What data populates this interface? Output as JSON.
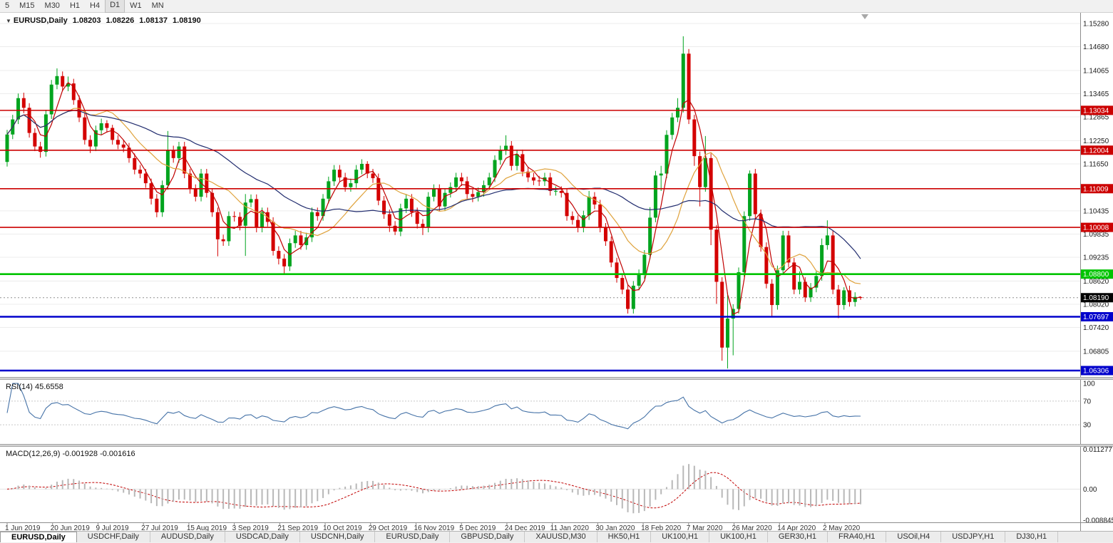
{
  "toolbar": {
    "timeframes": [
      "5",
      "M15",
      "M30",
      "H1",
      "H4",
      "D1",
      "W1",
      "MN"
    ],
    "active": "D1"
  },
  "chart": {
    "title": {
      "symbol": "EURUSD,Daily",
      "open": "1.08203",
      "high": "1.08226",
      "low": "1.08137",
      "close": "1.08190"
    }
  },
  "chart_data": {
    "type": "candlestick",
    "symbol": "EURUSD",
    "timeframe": "Daily",
    "title": "EURUSD,Daily 1.08203 1.08226 1.08137 1.08190",
    "ylim": [
      1.0614,
      1.15556
    ],
    "price_axis_ticks": [
      "1.15280",
      "1.14680",
      "1.14065",
      "1.13465",
      "1.12865",
      "1.12250",
      "1.11650",
      "1.10435",
      "1.09835",
      "1.09235",
      "1.08620",
      "1.08020",
      "1.07420",
      "1.06805"
    ],
    "x_labels": [
      "1 Jun 2019",
      "20 Jun 2019",
      "9 Jul 2019",
      "27 Jul 2019",
      "15 Aug 2019",
      "3 Sep 2019",
      "21 Sep 2019",
      "10 Oct 2019",
      "29 Oct 2019",
      "16 Nov 2019",
      "5 Dec 2019",
      "24 Dec 2019",
      "11 Jan 2020",
      "30 Jan 2020",
      "18 Feb 2020",
      "7 Mar 2020",
      "26 Mar 2020",
      "14 Apr 2020",
      "2 May 2020"
    ],
    "candle_colors": {
      "up": "#00a41e",
      "down": "#d40000"
    },
    "candles_ohlc": [
      [
        1.117,
        1.1253,
        1.1158,
        1.1241
      ],
      [
        1.1241,
        1.1292,
        1.1229,
        1.128
      ],
      [
        1.128,
        1.1347,
        1.1268,
        1.1335
      ],
      [
        1.1335,
        1.1349,
        1.1296,
        1.131
      ],
      [
        1.131,
        1.1322,
        1.1233,
        1.1245
      ],
      [
        1.1245,
        1.1257,
        1.1198,
        1.121
      ],
      [
        1.121,
        1.1222,
        1.1181,
        1.1196
      ],
      [
        1.1196,
        1.1305,
        1.1184,
        1.1293
      ],
      [
        1.1293,
        1.1382,
        1.1281,
        1.137
      ],
      [
        1.137,
        1.1412,
        1.1358,
        1.1392
      ],
      [
        1.1392,
        1.1404,
        1.1353,
        1.1365
      ],
      [
        1.1365,
        1.1391,
        1.1353,
        1.1373
      ],
      [
        1.1373,
        1.1385,
        1.1318,
        1.133
      ],
      [
        1.133,
        1.1342,
        1.1273,
        1.1285
      ],
      [
        1.1285,
        1.1297,
        1.1215,
        1.1227
      ],
      [
        1.1227,
        1.1239,
        1.1193,
        1.121
      ],
      [
        1.121,
        1.1264,
        1.1198,
        1.1252
      ],
      [
        1.1252,
        1.1282,
        1.124,
        1.127
      ],
      [
        1.127,
        1.1278,
        1.1246,
        1.1258
      ],
      [
        1.1258,
        1.1266,
        1.1215,
        1.1227
      ],
      [
        1.1227,
        1.1239,
        1.1203,
        1.1215
      ],
      [
        1.1215,
        1.1227,
        1.1195,
        1.1207
      ],
      [
        1.1207,
        1.1219,
        1.1168,
        1.118
      ],
      [
        1.118,
        1.1192,
        1.1138,
        1.115
      ],
      [
        1.115,
        1.1162,
        1.1128,
        1.114
      ],
      [
        1.114,
        1.1152,
        1.1103,
        1.1115
      ],
      [
        1.1115,
        1.1127,
        1.106,
        1.1075
      ],
      [
        1.1075,
        1.1087,
        1.1027,
        1.104
      ],
      [
        1.104,
        1.1122,
        1.1028,
        1.111
      ],
      [
        1.111,
        1.125,
        1.1098,
        1.12
      ],
      [
        1.12,
        1.1212,
        1.1168,
        1.118
      ],
      [
        1.118,
        1.1222,
        1.1168,
        1.121
      ],
      [
        1.121,
        1.1222,
        1.1128,
        1.114
      ],
      [
        1.114,
        1.1152,
        1.1088,
        1.11
      ],
      [
        1.11,
        1.1112,
        1.1068,
        1.108
      ],
      [
        1.108,
        1.1152,
        1.1068,
        1.114
      ],
      [
        1.114,
        1.1152,
        1.1078,
        1.109
      ],
      [
        1.109,
        1.1102,
        1.1028,
        1.104
      ],
      [
        1.104,
        1.1052,
        1.0926,
        1.097
      ],
      [
        1.097,
        1.0982,
        1.0953,
        1.0965
      ],
      [
        1.0965,
        1.1042,
        1.0953,
        1.103
      ],
      [
        1.103,
        1.1042,
        1.1016,
        1.1028
      ],
      [
        1.1028,
        1.104,
        1.0993,
        1.1005
      ],
      [
        1.1005,
        1.1087,
        1.0927,
        1.1065
      ],
      [
        1.1065,
        1.1086,
        1.1053,
        1.1074
      ],
      [
        1.1074,
        1.1086,
        1.0988,
        1.1
      ],
      [
        1.1,
        1.1052,
        1.0988,
        1.104
      ],
      [
        1.104,
        1.1052,
        1.1003,
        1.1015
      ],
      [
        1.1015,
        1.1027,
        1.0928,
        1.094
      ],
      [
        1.094,
        1.0952,
        1.0905,
        1.092
      ],
      [
        1.092,
        1.0932,
        1.0879,
        1.09
      ],
      [
        1.09,
        1.0972,
        1.0888,
        1.096
      ],
      [
        1.096,
        1.0992,
        1.0948,
        1.098
      ],
      [
        1.098,
        1.0992,
        1.0943,
        1.0955
      ],
      [
        1.0955,
        1.0987,
        1.0943,
        1.0975
      ],
      [
        1.0975,
        1.1052,
        1.0963,
        1.104
      ],
      [
        1.104,
        1.1052,
        1.1018,
        1.103
      ],
      [
        1.103,
        1.1087,
        1.1018,
        1.1075
      ],
      [
        1.1075,
        1.1132,
        1.1063,
        1.112
      ],
      [
        1.112,
        1.1162,
        1.1108,
        1.115
      ],
      [
        1.115,
        1.1162,
        1.1118,
        1.113
      ],
      [
        1.113,
        1.1142,
        1.1093,
        1.1105
      ],
      [
        1.1105,
        1.1127,
        1.1093,
        1.1115
      ],
      [
        1.1115,
        1.1162,
        1.1103,
        1.115
      ],
      [
        1.115,
        1.1177,
        1.1138,
        1.1165
      ],
      [
        1.1165,
        1.1172,
        1.1128,
        1.114
      ],
      [
        1.114,
        1.1152,
        1.1116,
        1.1128
      ],
      [
        1.1128,
        1.114,
        1.1058,
        1.107
      ],
      [
        1.107,
        1.1082,
        1.1023,
        1.1035
      ],
      [
        1.1035,
        1.1047,
        1.0989,
        1.1005
      ],
      [
        1.1005,
        1.1017,
        1.0981,
        1.099
      ],
      [
        1.099,
        1.1062,
        1.0978,
        1.105
      ],
      [
        1.105,
        1.1087,
        1.1038,
        1.1075
      ],
      [
        1.1075,
        1.1087,
        1.1028,
        1.104
      ],
      [
        1.104,
        1.1052,
        1.0998,
        1.101
      ],
      [
        1.101,
        1.1022,
        1.0981,
        1.1
      ],
      [
        1.1,
        1.1092,
        1.0988,
        1.108
      ],
      [
        1.108,
        1.1112,
        1.1068,
        1.11
      ],
      [
        1.11,
        1.1112,
        1.1043,
        1.1055
      ],
      [
        1.1055,
        1.1102,
        1.1043,
        1.109
      ],
      [
        1.109,
        1.1117,
        1.1078,
        1.1105
      ],
      [
        1.1105,
        1.1142,
        1.1093,
        1.113
      ],
      [
        1.113,
        1.1142,
        1.1108,
        1.112
      ],
      [
        1.112,
        1.1132,
        1.1075,
        1.1087
      ],
      [
        1.1087,
        1.1099,
        1.1066,
        1.108
      ],
      [
        1.108,
        1.1104,
        1.1068,
        1.1092
      ],
      [
        1.1092,
        1.1122,
        1.108,
        1.111
      ],
      [
        1.111,
        1.1142,
        1.1098,
        1.113
      ],
      [
        1.113,
        1.1187,
        1.1118,
        1.1175
      ],
      [
        1.1175,
        1.1212,
        1.1163,
        1.12
      ],
      [
        1.12,
        1.1239,
        1.1188,
        1.1212
      ],
      [
        1.1212,
        1.1224,
        1.1148,
        1.116
      ],
      [
        1.116,
        1.1202,
        1.1148,
        1.119
      ],
      [
        1.119,
        1.1202,
        1.1133,
        1.1145
      ],
      [
        1.1145,
        1.1157,
        1.1118,
        1.113
      ],
      [
        1.113,
        1.1142,
        1.111,
        1.1122
      ],
      [
        1.1122,
        1.1134,
        1.1108,
        1.112
      ],
      [
        1.112,
        1.1142,
        1.1108,
        1.113
      ],
      [
        1.113,
        1.1142,
        1.1083,
        1.1095
      ],
      [
        1.1095,
        1.1107,
        1.1083,
        1.1095
      ],
      [
        1.1095,
        1.1107,
        1.1078,
        1.109
      ],
      [
        1.109,
        1.1102,
        1.1018,
        1.103
      ],
      [
        1.103,
        1.1042,
        1.1008,
        1.102
      ],
      [
        1.102,
        1.1032,
        1.0988,
        1.1
      ],
      [
        1.1,
        1.1044,
        1.0988,
        1.1032
      ],
      [
        1.1032,
        1.1095,
        1.102,
        1.108
      ],
      [
        1.108,
        1.1092,
        1.1048,
        1.106
      ],
      [
        1.106,
        1.1072,
        1.0988,
        1.1
      ],
      [
        1.1,
        1.1012,
        1.0953,
        1.0965
      ],
      [
        1.0965,
        1.0977,
        1.0898,
        1.091
      ],
      [
        1.091,
        1.0922,
        1.0858,
        1.087
      ],
      [
        1.087,
        1.0882,
        1.0828,
        1.084
      ],
      [
        1.084,
        1.0852,
        1.0778,
        1.079
      ],
      [
        1.079,
        1.0862,
        1.0778,
        1.085
      ],
      [
        1.085,
        1.0892,
        1.0838,
        1.088
      ],
      [
        1.088,
        1.0942,
        1.0868,
        1.093
      ],
      [
        1.093,
        1.1053,
        1.0918,
        1.1026
      ],
      [
        1.1026,
        1.1147,
        1.1014,
        1.1135
      ],
      [
        1.1135,
        1.116,
        1.1095,
        1.114
      ],
      [
        1.114,
        1.1252,
        1.1128,
        1.124
      ],
      [
        1.124,
        1.1297,
        1.1228,
        1.1285
      ],
      [
        1.1285,
        1.1335,
        1.1273,
        1.131
      ],
      [
        1.131,
        1.1495,
        1.1298,
        1.145
      ],
      [
        1.145,
        1.1462,
        1.1268,
        1.128
      ],
      [
        1.128,
        1.1292,
        1.116,
        1.1185
      ],
      [
        1.1185,
        1.1197,
        1.1055,
        1.1105
      ],
      [
        1.1105,
        1.1237,
        1.1093,
        1.118
      ],
      [
        1.118,
        1.1192,
        1.0955,
        1.0995
      ],
      [
        1.0995,
        1.1007,
        1.0803,
        1.086
      ],
      [
        1.086,
        1.0872,
        1.0656,
        1.069
      ],
      [
        1.069,
        1.0832,
        1.0636,
        1.0765
      ],
      [
        1.0765,
        1.0802,
        1.067,
        1.079
      ],
      [
        1.079,
        1.0897,
        1.0778,
        1.0885
      ],
      [
        1.0885,
        1.1042,
        1.0873,
        1.103
      ],
      [
        1.103,
        1.1148,
        1.1018,
        1.114
      ],
      [
        1.114,
        1.1152,
        1.1023,
        1.1035
      ],
      [
        1.1035,
        1.1047,
        1.0938,
        1.095
      ],
      [
        1.095,
        1.0962,
        1.0843,
        1.0855
      ],
      [
        1.0855,
        1.0867,
        1.0768,
        1.08
      ],
      [
        1.08,
        1.0902,
        1.0788,
        1.089
      ],
      [
        1.089,
        1.0992,
        1.0878,
        1.098
      ],
      [
        1.098,
        1.0992,
        1.0898,
        1.091
      ],
      [
        1.091,
        1.0922,
        1.0828,
        1.084
      ],
      [
        1.084,
        1.0887,
        1.0828,
        1.086
      ],
      [
        1.086,
        1.0872,
        1.0808,
        1.082
      ],
      [
        1.082,
        1.0857,
        1.0808,
        1.0845
      ],
      [
        1.0845,
        1.0887,
        1.0833,
        1.0875
      ],
      [
        1.0875,
        1.0972,
        1.0863,
        1.0955
      ],
      [
        1.0955,
        1.1019,
        1.0943,
        1.098
      ],
      [
        1.098,
        1.0992,
        1.0828,
        1.084
      ],
      [
        1.084,
        1.0852,
        1.0766,
        1.08
      ],
      [
        1.08,
        1.0846,
        1.0788,
        1.0838
      ],
      [
        1.0838,
        1.085,
        1.0796,
        1.0808
      ],
      [
        1.0808,
        1.0833,
        1.0796,
        1.0821
      ],
      [
        1.08203,
        1.08226,
        1.08137,
        1.0819
      ]
    ],
    "moving_averages": [
      {
        "name": "fast-ma",
        "period": 4,
        "color": "#c00000"
      },
      {
        "name": "medium-ma",
        "period": 12,
        "color": "#dfa23b"
      },
      {
        "name": "slow-ma",
        "period": 32,
        "color": "#212c6e"
      }
    ],
    "hlines": [
      {
        "price": 1.13034,
        "label": "1.13034",
        "color": "#cc0000",
        "width": 1.6
      },
      {
        "price": 1.12004,
        "label": "1.12004",
        "color": "#cc0000",
        "width": 1.6
      },
      {
        "price": 1.11009,
        "label": "1.11009",
        "color": "#cc0000",
        "width": 1.6
      },
      {
        "price": 1.10008,
        "label": "1.10008",
        "color": "#cc0000",
        "width": 1.6
      },
      {
        "price": 1.088,
        "label": "1.08800",
        "color": "#00c400",
        "width": 2.6
      },
      {
        "price": 1.07697,
        "label": "1.07697",
        "color": "#0000cc",
        "width": 2.6
      },
      {
        "price": 1.06306,
        "label": "1.06306",
        "color": "#0000cc",
        "width": 2.6
      }
    ],
    "current_price": {
      "value": 1.0819,
      "label": "1.08190",
      "color": "#000000"
    },
    "indicators": {
      "rsi": {
        "label": "RSI(14) 45.6558",
        "name": "RSI(14)",
        "value": "45.6558",
        "period": 14,
        "levels": [
          70,
          30
        ],
        "axis_ticks": [
          "100",
          "70",
          "30"
        ],
        "color": "#4572a7"
      },
      "macd": {
        "label": "MACD(12,26,9) -0.001928 -0.001616",
        "name": "MACD(12,26,9)",
        "values": [
          "-0.001928",
          "-0.001616"
        ],
        "fast": 12,
        "slow": 26,
        "signal": 9,
        "axis_ticks": [
          {
            "label": "0.011277",
            "value": 0.011277
          },
          {
            "label": "0.00",
            "value": 0
          },
          {
            "label": "-0.008845",
            "value": -0.008845
          }
        ],
        "histogram_color": "#b8b8b8",
        "signal_color": "#c00000"
      }
    }
  },
  "tabs": [
    {
      "label": "EURUSD,Daily",
      "active": true
    },
    {
      "label": "USDCHF,Daily",
      "active": false
    },
    {
      "label": "AUDUSD,Daily",
      "active": false
    },
    {
      "label": "USDCAD,Daily",
      "active": false
    },
    {
      "label": "USDCNH,Daily",
      "active": false
    },
    {
      "label": "EURUSD,Daily",
      "active": false
    },
    {
      "label": "GBPUSD,Daily",
      "active": false
    },
    {
      "label": "XAUUSD,M30",
      "active": false
    },
    {
      "label": "HK50,H1",
      "active": false
    },
    {
      "label": "UK100,H1",
      "active": false
    },
    {
      "label": "UK100,H1",
      "active": false
    },
    {
      "label": "GER30,H1",
      "active": false
    },
    {
      "label": "FRA40,H1",
      "active": false
    },
    {
      "label": "USOil,H4",
      "active": false
    },
    {
      "label": "USDJPY,H1",
      "active": false
    },
    {
      "label": "DJ30,H1",
      "active": false
    }
  ]
}
